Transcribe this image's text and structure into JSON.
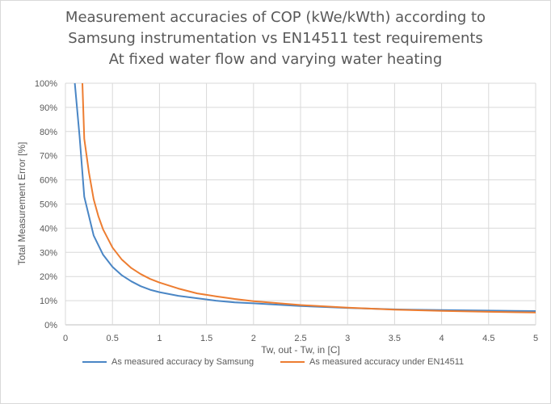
{
  "chart_data": {
    "type": "line",
    "title": [
      "Measurement accuracies of COP (kWe/kWth) according to",
      "Samsung instrumentation vs EN14511 test requirements",
      "At fixed water flow and varying water heating"
    ],
    "xlabel": "Tw, out - Tw, in [C]",
    "ylabel": "Total Measurement Error [%]",
    "xlim": [
      0,
      5
    ],
    "ylim": [
      0,
      100
    ],
    "x_ticks": [
      "0",
      "0.5",
      "1",
      "1.5",
      "2",
      "2.5",
      "3",
      "3.5",
      "4",
      "4.5",
      "5"
    ],
    "y_ticks": [
      "0%",
      "10%",
      "20%",
      "30%",
      "40%",
      "50%",
      "60%",
      "70%",
      "80%",
      "90%",
      "100%"
    ],
    "grid": true,
    "legend_position": "bottom",
    "series": [
      {
        "name": "As measured accuracy by Samsung",
        "color": "#4a86c5",
        "points": [
          [
            0.1,
            100
          ],
          [
            0.15,
            78
          ],
          [
            0.2,
            53
          ],
          [
            0.3,
            37
          ],
          [
            0.4,
            29
          ],
          [
            0.5,
            24
          ],
          [
            0.6,
            20.5
          ],
          [
            0.7,
            18
          ],
          [
            0.8,
            16
          ],
          [
            0.9,
            14.5
          ],
          [
            1.0,
            13.5
          ],
          [
            1.2,
            12
          ],
          [
            1.4,
            11
          ],
          [
            1.6,
            10
          ],
          [
            1.8,
            9.3
          ],
          [
            2.0,
            8.9
          ],
          [
            2.5,
            7.8
          ],
          [
            3.0,
            7
          ],
          [
            3.5,
            6.4
          ],
          [
            4.0,
            6.1
          ],
          [
            4.5,
            5.9
          ],
          [
            5.0,
            5.7
          ]
        ]
      },
      {
        "name": "As measured accuracy under EN14511",
        "color": "#ed7d31",
        "points": [
          [
            0.18,
            100
          ],
          [
            0.2,
            77
          ],
          [
            0.25,
            63
          ],
          [
            0.3,
            52
          ],
          [
            0.35,
            45
          ],
          [
            0.4,
            39.5
          ],
          [
            0.5,
            32
          ],
          [
            0.6,
            27
          ],
          [
            0.7,
            23.5
          ],
          [
            0.8,
            21
          ],
          [
            0.9,
            19
          ],
          [
            1.0,
            17.5
          ],
          [
            1.2,
            15
          ],
          [
            1.4,
            13
          ],
          [
            1.6,
            11.8
          ],
          [
            1.8,
            10.7
          ],
          [
            2.0,
            9.8
          ],
          [
            2.5,
            8.2
          ],
          [
            3.0,
            7.1
          ],
          [
            3.5,
            6.3
          ],
          [
            4.0,
            5.8
          ],
          [
            4.5,
            5.4
          ],
          [
            5.0,
            5.1
          ]
        ]
      }
    ]
  }
}
